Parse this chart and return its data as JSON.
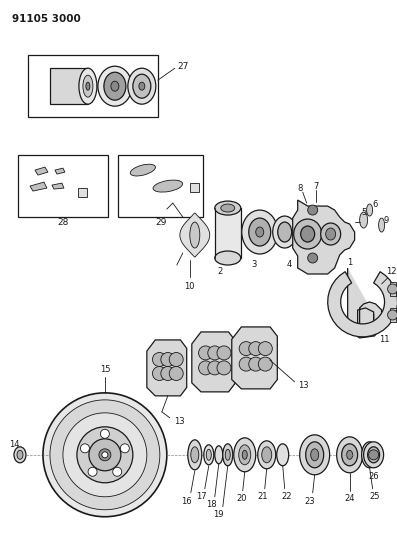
{
  "title": "91105 3000",
  "bg_color": "#ffffff",
  "line_color": "#1a1a1a",
  "fig_width": 3.97,
  "fig_height": 5.33,
  "dpi": 100
}
